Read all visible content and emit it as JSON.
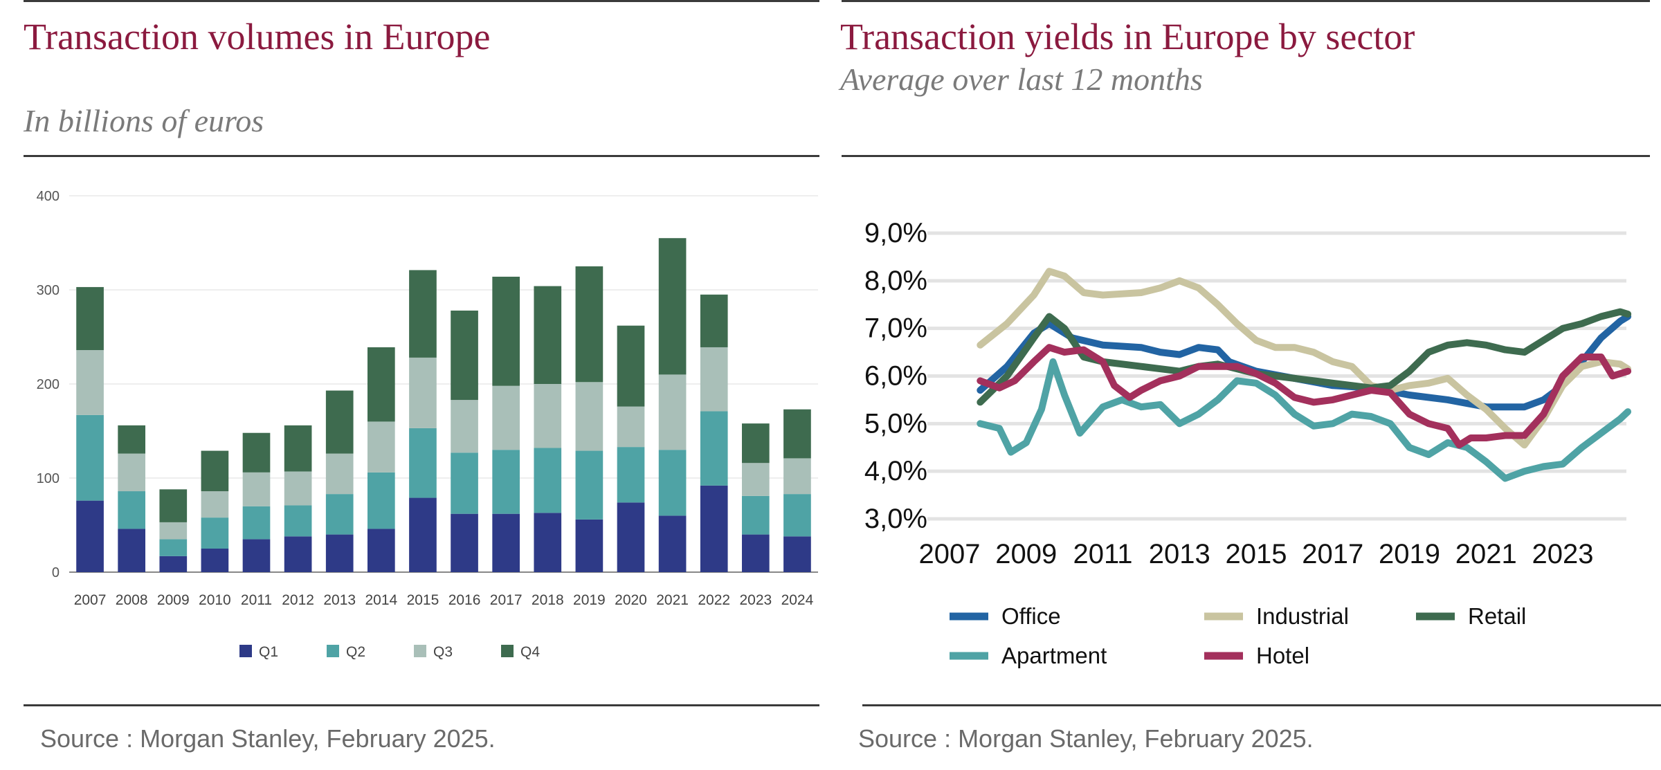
{
  "left": {
    "title": "Transaction volumes in Europe",
    "subtitle": "In billions of euros",
    "source": "Source : Morgan Stanley, February 2025."
  },
  "right": {
    "title": "Transaction yields in Europe by sector",
    "subtitle": "Average over last 12 months",
    "source": "Source : Morgan Stanley, February 2025."
  },
  "chart_data": [
    {
      "type": "bar",
      "stacked": true,
      "title": "Transaction volumes in Europe",
      "subtitle": "In billions of euros",
      "categories": [
        "2007",
        "2008",
        "2009",
        "2010",
        "2011",
        "2012",
        "2013",
        "2014",
        "2015",
        "2016",
        "2017",
        "2018",
        "2019",
        "2020",
        "2021",
        "2022",
        "2023",
        "2024"
      ],
      "ylim": [
        0,
        400
      ],
      "yticks": [
        0,
        100,
        200,
        300,
        400
      ],
      "grid": true,
      "legend_position": "bottom",
      "series": [
        {
          "name": "Q1",
          "color": "#2e3a87",
          "values": [
            76,
            46,
            17,
            25,
            35,
            38,
            40,
            46,
            79,
            62,
            62,
            63,
            56,
            74,
            60,
            92,
            40,
            38
          ]
        },
        {
          "name": "Q2",
          "color": "#4fa3a5",
          "values": [
            91,
            40,
            18,
            33,
            35,
            33,
            43,
            60,
            74,
            65,
            68,
            69,
            73,
            59,
            70,
            79,
            41,
            45
          ]
        },
        {
          "name": "Q3",
          "color": "#a9bfb8",
          "values": [
            69,
            40,
            18,
            28,
            36,
            36,
            43,
            54,
            75,
            56,
            68,
            68,
            73,
            43,
            80,
            68,
            35,
            38
          ]
        },
        {
          "name": "Q4",
          "color": "#3e6b4f",
          "values": [
            67,
            30,
            35,
            43,
            42,
            49,
            67,
            79,
            93,
            95,
            116,
            104,
            123,
            86,
            145,
            56,
            42,
            52
          ]
        }
      ]
    },
    {
      "type": "line",
      "title": "Transaction yields in Europe by sector",
      "subtitle": "Average over last 12 months",
      "xlim": [
        2007,
        2025
      ],
      "xticks": [
        "2007",
        "2009",
        "2011",
        "2013",
        "2015",
        "2017",
        "2019",
        "2021",
        "2023"
      ],
      "ylim": [
        2.5,
        9.5
      ],
      "yticks": [
        "3,0%",
        "4,0%",
        "5,0%",
        "6,0%",
        "7,0%",
        "8,0%",
        "9,0%"
      ],
      "ytick_values": [
        3,
        4,
        5,
        6,
        7,
        8,
        9
      ],
      "grid": true,
      "legend_position": "bottom",
      "series": [
        {
          "name": "Office",
          "color": "#2264a3",
          "points": [
            [
              2007.8,
              5.7
            ],
            [
              2008.5,
              6.2
            ],
            [
              2009.2,
              6.9
            ],
            [
              2009.6,
              7.1
            ],
            [
              2010.2,
              6.8
            ],
            [
              2011,
              6.65
            ],
            [
              2012,
              6.6
            ],
            [
              2012.5,
              6.5
            ],
            [
              2013,
              6.45
            ],
            [
              2013.5,
              6.6
            ],
            [
              2014,
              6.55
            ],
            [
              2014.3,
              6.3
            ],
            [
              2015,
              6.1
            ],
            [
              2016,
              5.95
            ],
            [
              2017,
              5.8
            ],
            [
              2018,
              5.75
            ],
            [
              2019,
              5.6
            ],
            [
              2020,
              5.5
            ],
            [
              2021,
              5.35
            ],
            [
              2022,
              5.35
            ],
            [
              2022.5,
              5.5
            ],
            [
              2023,
              5.8
            ],
            [
              2023.5,
              6.3
            ],
            [
              2024,
              6.8
            ],
            [
              2024.5,
              7.15
            ],
            [
              2024.7,
              7.25
            ]
          ]
        },
        {
          "name": "Industrial",
          "color": "#c9c4a0",
          "points": [
            [
              2007.8,
              6.65
            ],
            [
              2008.5,
              7.1
            ],
            [
              2009.2,
              7.7
            ],
            [
              2009.6,
              8.2
            ],
            [
              2010,
              8.1
            ],
            [
              2010.5,
              7.75
            ],
            [
              2011,
              7.7
            ],
            [
              2012,
              7.75
            ],
            [
              2012.5,
              7.85
            ],
            [
              2013,
              8.0
            ],
            [
              2013.5,
              7.85
            ],
            [
              2014,
              7.5
            ],
            [
              2014.5,
              7.1
            ],
            [
              2015,
              6.75
            ],
            [
              2015.5,
              6.6
            ],
            [
              2016,
              6.6
            ],
            [
              2016.5,
              6.5
            ],
            [
              2017,
              6.3
            ],
            [
              2017.5,
              6.2
            ],
            [
              2018,
              5.8
            ],
            [
              2018.5,
              5.7
            ],
            [
              2019,
              5.8
            ],
            [
              2019.5,
              5.85
            ],
            [
              2020,
              5.95
            ],
            [
              2020.5,
              5.6
            ],
            [
              2021,
              5.3
            ],
            [
              2021.5,
              4.9
            ],
            [
              2022,
              4.55
            ],
            [
              2022.5,
              5.1
            ],
            [
              2023,
              5.8
            ],
            [
              2023.5,
              6.2
            ],
            [
              2024,
              6.3
            ],
            [
              2024.5,
              6.25
            ],
            [
              2024.7,
              6.15
            ]
          ]
        },
        {
          "name": "Retail",
          "color": "#3e6b4f",
          "points": [
            [
              2007.8,
              5.45
            ],
            [
              2008.5,
              6.0
            ],
            [
              2009.2,
              6.8
            ],
            [
              2009.6,
              7.25
            ],
            [
              2010,
              7.0
            ],
            [
              2010.5,
              6.4
            ],
            [
              2011,
              6.3
            ],
            [
              2012,
              6.2
            ],
            [
              2013,
              6.1
            ],
            [
              2013.5,
              6.2
            ],
            [
              2014,
              6.25
            ],
            [
              2014.5,
              6.15
            ],
            [
              2015,
              6.05
            ],
            [
              2016,
              5.95
            ],
            [
              2017,
              5.85
            ],
            [
              2018,
              5.75
            ],
            [
              2018.5,
              5.8
            ],
            [
              2019,
              6.1
            ],
            [
              2019.5,
              6.5
            ],
            [
              2020,
              6.65
            ],
            [
              2020.5,
              6.7
            ],
            [
              2021,
              6.65
            ],
            [
              2021.5,
              6.55
            ],
            [
              2022,
              6.5
            ],
            [
              2022.5,
              6.75
            ],
            [
              2023,
              7.0
            ],
            [
              2023.5,
              7.1
            ],
            [
              2024,
              7.25
            ],
            [
              2024.5,
              7.35
            ],
            [
              2024.7,
              7.3
            ]
          ]
        },
        {
          "name": "Apartment",
          "color": "#4fa3a5",
          "points": [
            [
              2007.8,
              5.0
            ],
            [
              2008.3,
              4.9
            ],
            [
              2008.6,
              4.4
            ],
            [
              2009,
              4.6
            ],
            [
              2009.4,
              5.3
            ],
            [
              2009.7,
              6.3
            ],
            [
              2010,
              5.6
            ],
            [
              2010.4,
              4.8
            ],
            [
              2011,
              5.35
            ],
            [
              2011.5,
              5.5
            ],
            [
              2012,
              5.35
            ],
            [
              2012.5,
              5.4
            ],
            [
              2013,
              5.0
            ],
            [
              2013.5,
              5.2
            ],
            [
              2014,
              5.5
            ],
            [
              2014.5,
              5.9
            ],
            [
              2015,
              5.85
            ],
            [
              2015.5,
              5.6
            ],
            [
              2016,
              5.2
            ],
            [
              2016.5,
              4.95
            ],
            [
              2017,
              5.0
            ],
            [
              2017.5,
              5.2
            ],
            [
              2018,
              5.15
            ],
            [
              2018.5,
              5.0
            ],
            [
              2019,
              4.5
            ],
            [
              2019.5,
              4.35
            ],
            [
              2020,
              4.6
            ],
            [
              2020.5,
              4.5
            ],
            [
              2021,
              4.2
            ],
            [
              2021.5,
              3.85
            ],
            [
              2022,
              4.0
            ],
            [
              2022.5,
              4.1
            ],
            [
              2023,
              4.15
            ],
            [
              2023.5,
              4.5
            ],
            [
              2024,
              4.8
            ],
            [
              2024.5,
              5.1
            ],
            [
              2024.7,
              5.25
            ]
          ]
        },
        {
          "name": "Hotel",
          "color": "#a3305c",
          "points": [
            [
              2007.8,
              5.9
            ],
            [
              2008.3,
              5.75
            ],
            [
              2008.7,
              5.9
            ],
            [
              2009.2,
              6.3
            ],
            [
              2009.6,
              6.6
            ],
            [
              2010,
              6.5
            ],
            [
              2010.5,
              6.55
            ],
            [
              2011,
              6.3
            ],
            [
              2011.3,
              5.8
            ],
            [
              2011.7,
              5.55
            ],
            [
              2012,
              5.7
            ],
            [
              2012.5,
              5.9
            ],
            [
              2013,
              6.0
            ],
            [
              2013.5,
              6.2
            ],
            [
              2014,
              6.2
            ],
            [
              2014.5,
              6.2
            ],
            [
              2015,
              6.05
            ],
            [
              2015.5,
              5.85
            ],
            [
              2016,
              5.55
            ],
            [
              2016.5,
              5.45
            ],
            [
              2017,
              5.5
            ],
            [
              2017.5,
              5.6
            ],
            [
              2018,
              5.7
            ],
            [
              2018.5,
              5.65
            ],
            [
              2019,
              5.2
            ],
            [
              2019.5,
              5.0
            ],
            [
              2020,
              4.9
            ],
            [
              2020.3,
              4.55
            ],
            [
              2020.6,
              4.7
            ],
            [
              2021,
              4.7
            ],
            [
              2021.5,
              4.75
            ],
            [
              2022,
              4.75
            ],
            [
              2022.5,
              5.2
            ],
            [
              2023,
              6.0
            ],
            [
              2023.5,
              6.4
            ],
            [
              2024,
              6.4
            ],
            [
              2024.3,
              6.0
            ],
            [
              2024.7,
              6.1
            ]
          ]
        }
      ]
    }
  ]
}
